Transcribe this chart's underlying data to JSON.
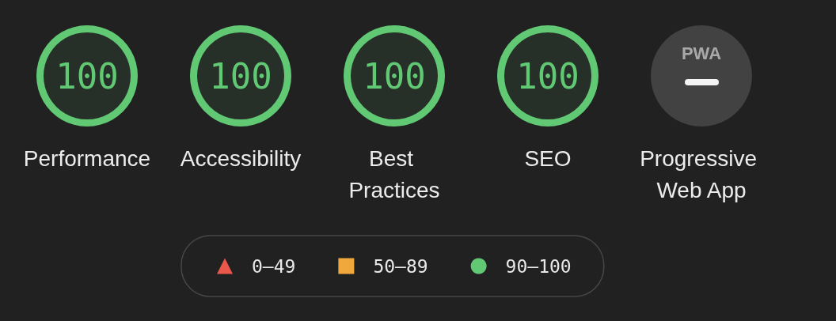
{
  "chart_data": {
    "type": "other",
    "categories": [
      "Performance",
      "Accessibility",
      "Best Practices",
      "SEO",
      "Progressive Web App"
    ],
    "series": [
      {
        "name": "0–49",
        "color": "#e9584a",
        "marker": "triangle",
        "values": [
          null,
          null,
          null,
          null,
          null
        ]
      },
      {
        "name": "50–89",
        "color": "#f0a83c",
        "marker": "square",
        "values": [
          null,
          null,
          null,
          null,
          null
        ]
      },
      {
        "name": "90–100",
        "color": "#61c974",
        "marker": "circle",
        "values": [
          100,
          100,
          100,
          100,
          null
        ]
      }
    ],
    "data_labels": true,
    "legend": "bottom",
    "annotations": [
      {
        "text": "PWA",
        "x": "Progressive Web App"
      }
    ]
  }
}
